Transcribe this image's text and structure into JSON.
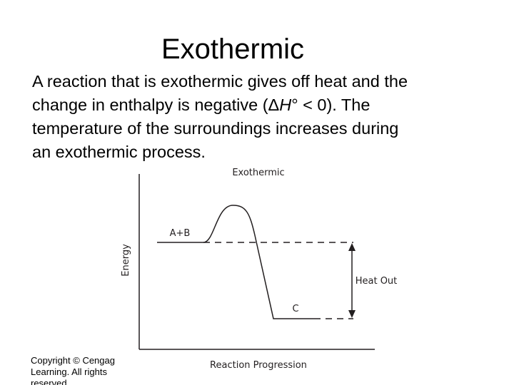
{
  "header": {
    "title": "Exothermic"
  },
  "body": {
    "lines": [
      [
        "A reaction that is exothermic gives off heat and the"
      ],
      [
        "change in enthalpy is negative (Δ",
        "H",
        "° < 0). The"
      ],
      [
        "temperature of the surroundings increases during"
      ],
      [
        "an exothermic process."
      ]
    ]
  },
  "footer": {
    "copyright": [
      "Copyright © Cengag",
      "Learning. All rights",
      "reserved."
    ]
  },
  "diagram": {
    "title": "Exothermic",
    "reactants": "A+B",
    "product": "C",
    "arrow_label": "Heat Out",
    "y_axis": "Energy",
    "x_axis": "Reaction Progression"
  }
}
